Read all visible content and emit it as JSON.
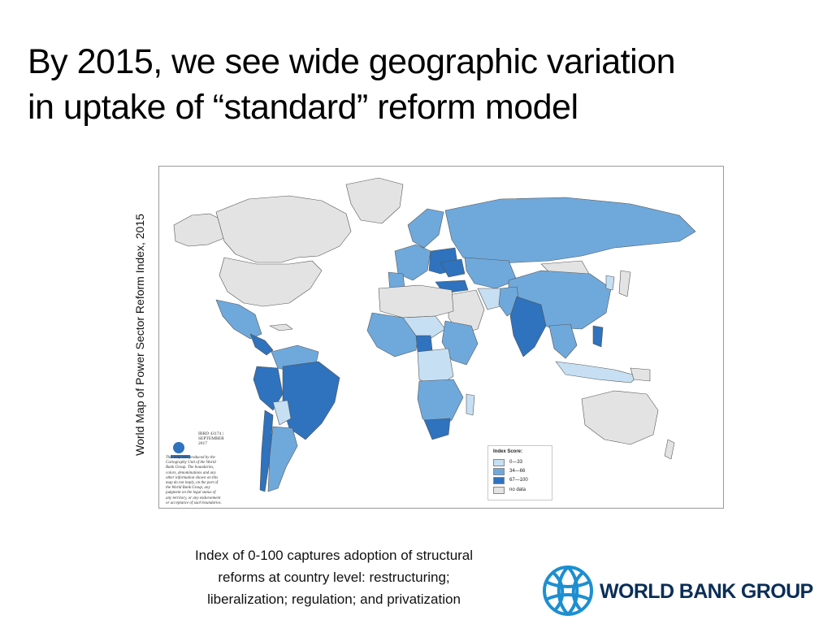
{
  "slide": {
    "title_line1": "By 2015, we see wide geographic variation",
    "title_line2": "in uptake of “standard” reform model",
    "vertical_label": "World Map of Power Sector Reform Index, 2015",
    "caption_line1": "Index of 0-100 captures adoption of structural",
    "caption_line2": "reforms at country level: restructuring;",
    "caption_line3": "liberalization; regulation; and privatization"
  },
  "map": {
    "credit_id_line1": "IBRD 43174 |",
    "credit_id_line2": "SEPTEMBER 2017",
    "credit_lines": [
      "This map was produced by the",
      "Cartography Unit of the World",
      "Bank Group. The boundaries,",
      "colors, denominations and any",
      "other information shown on this",
      "map do not imply, on the part of",
      "the World Bank Group, any",
      "judgment on the legal status of",
      "any territory, or any endorsement",
      "or acceptance of such boundaries."
    ],
    "legend": {
      "title": "Index Score:",
      "items": [
        {
          "label": "0—33",
          "color": "#c6dff3"
        },
        {
          "label": "34—66",
          "color": "#6fa9dc"
        },
        {
          "label": "67—100",
          "color": "#2f72bd"
        },
        {
          "label": "no data",
          "color": "#e3e3e3"
        }
      ]
    },
    "colors": {
      "low": "#c6dff3",
      "mid": "#6fa9dc",
      "high": "#2f72bd",
      "nodata": "#e3e3e3",
      "border": "#555555"
    }
  },
  "brand": {
    "name": "WORLD BANK GROUP",
    "color": "#0a2e57",
    "globe_color": "#1d8fd0"
  }
}
